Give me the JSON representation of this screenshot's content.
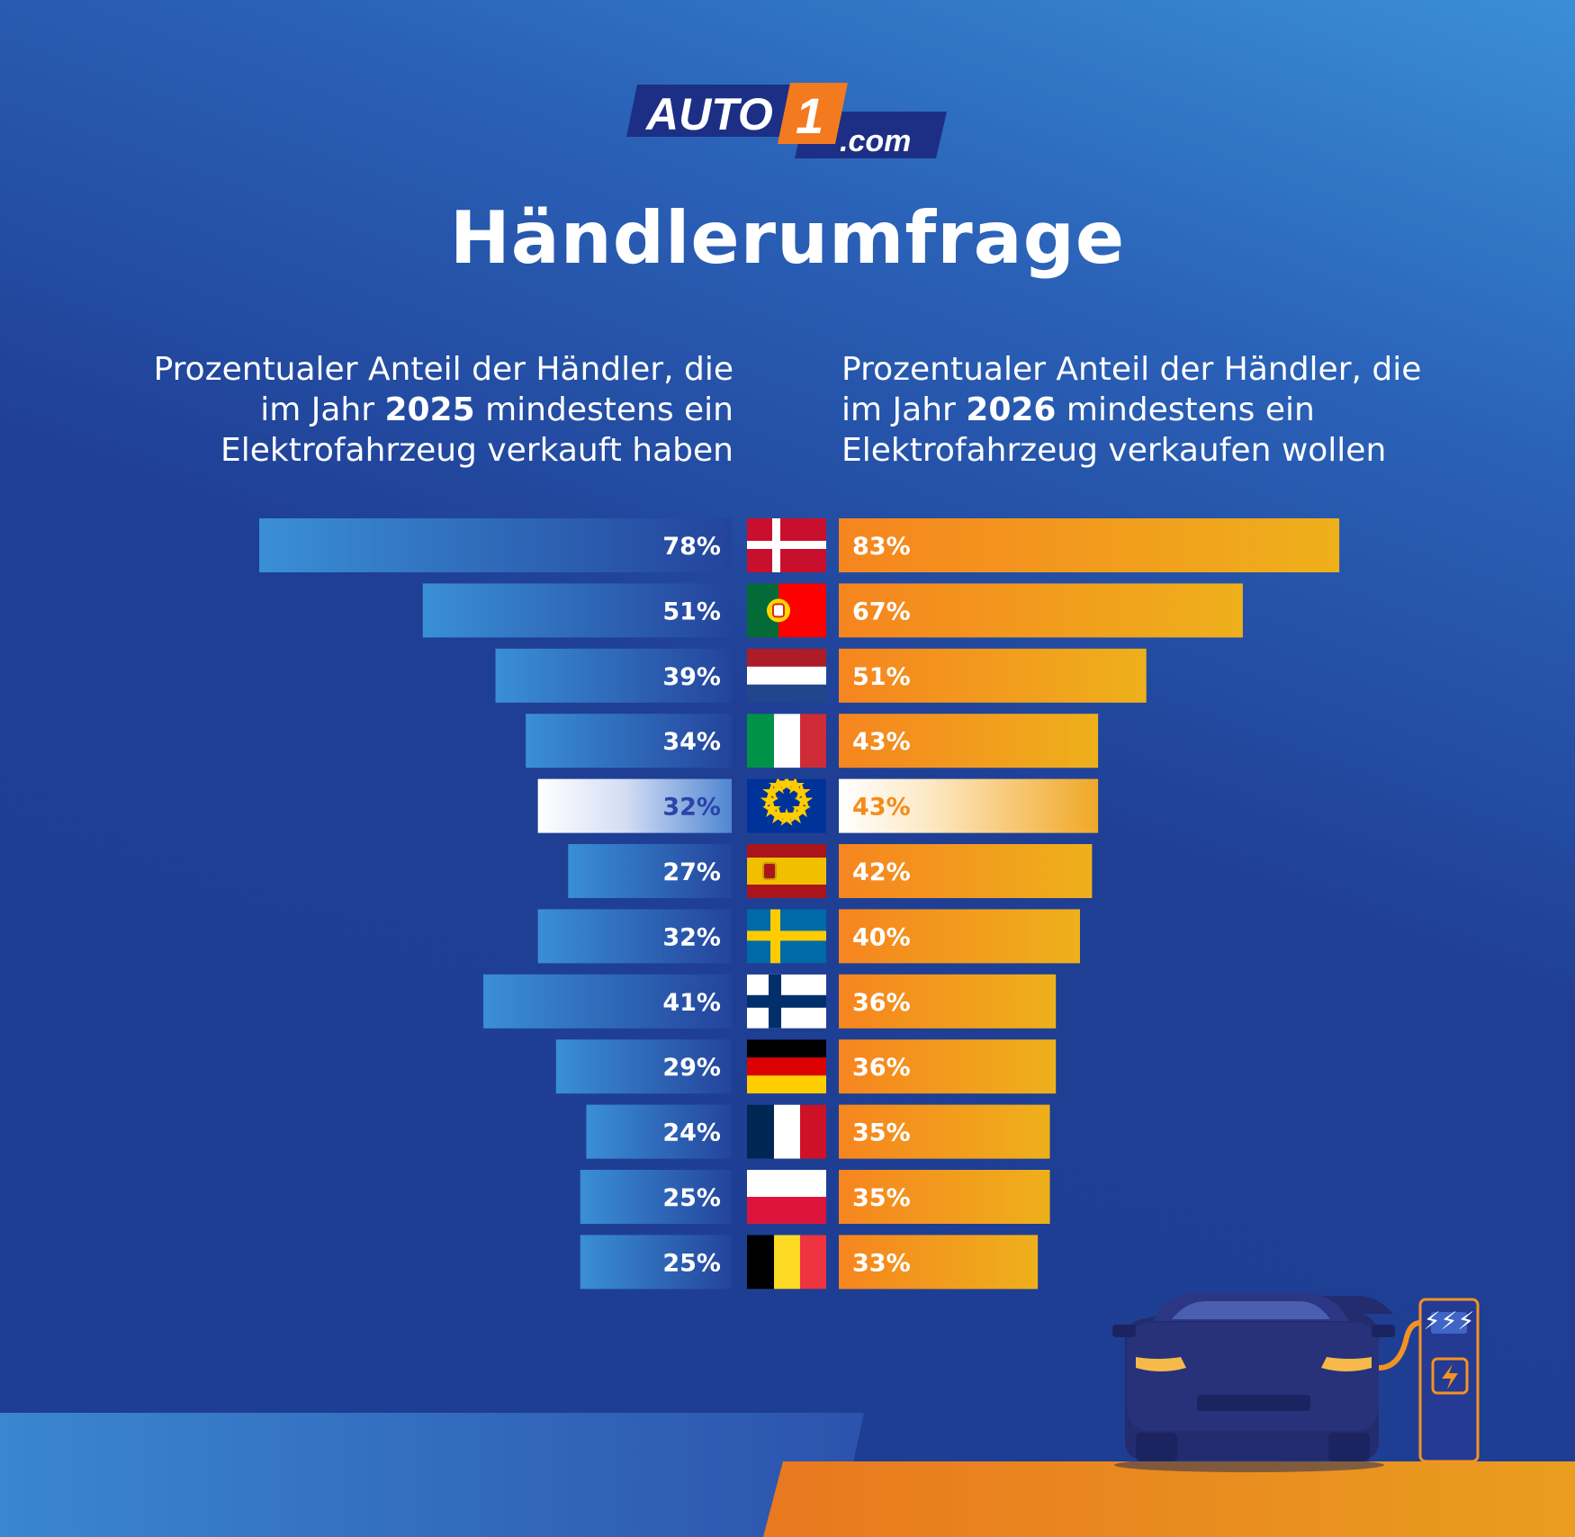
{
  "brand": {
    "logo_main": "AUTO",
    "logo_digit": "1",
    "logo_suffix": ".com"
  },
  "title": "Händlerumfrage",
  "subtitles": {
    "left": {
      "pre": "Prozentualer Anteil der Händler, die im Jahr ",
      "year": "2025",
      "post": " mindestens ein Elektrofahrzeug verkauft haben"
    },
    "right": {
      "pre": "Prozentualer Anteil der Händler, die im Jahr ",
      "year": "2026",
      "post": " mindestens ein Elektrofahrzeug verkaufen wollen"
    }
  },
  "colors": {
    "blue_bar": "#3a8fd6",
    "orange_bar": "#f68a1f",
    "orange_bar_end": "#eeb01b",
    "highlight_text_blue": "#2a44a8",
    "highlight_text_orange": "#f28c1e",
    "ground_orange": "#e9921f"
  },
  "chart_data": {
    "type": "bar",
    "orientation": "horizontal",
    "layout": "back-to-back",
    "categories": [
      "Denmark",
      "Portugal",
      "Netherlands",
      "Italy",
      "EU",
      "Spain",
      "Sweden",
      "Finland",
      "Germany",
      "France",
      "Poland",
      "Belgium"
    ],
    "category_icons": [
      "flag-denmark",
      "flag-portugal",
      "flag-netherlands",
      "flag-italy",
      "flag-eu",
      "flag-spain",
      "flag-sweden",
      "flag-finland",
      "flag-germany",
      "flag-france",
      "flag-poland",
      "flag-belgium"
    ],
    "highlight_index": 4,
    "series": [
      {
        "values": [
          78,
          51,
          39,
          34,
          32,
          27,
          32,
          41,
          29,
          24,
          25,
          25
        ],
        "labels": [
          "78%",
          "51%",
          "39%",
          "34%",
          "32%",
          "27%",
          "32%",
          "41%",
          "29%",
          "24%",
          "25%",
          "25%"
        ]
      },
      {
        "values": [
          83,
          67,
          51,
          43,
          43,
          42,
          40,
          36,
          36,
          35,
          35,
          33
        ],
        "labels": [
          "83%",
          "67%",
          "51%",
          "43%",
          "43%",
          "42%",
          "40%",
          "36%",
          "36%",
          "35%",
          "35%",
          "33%"
        ]
      }
    ]
  },
  "illustration": {
    "car": "electric-car-icon",
    "charger": "charging-station-icon"
  }
}
